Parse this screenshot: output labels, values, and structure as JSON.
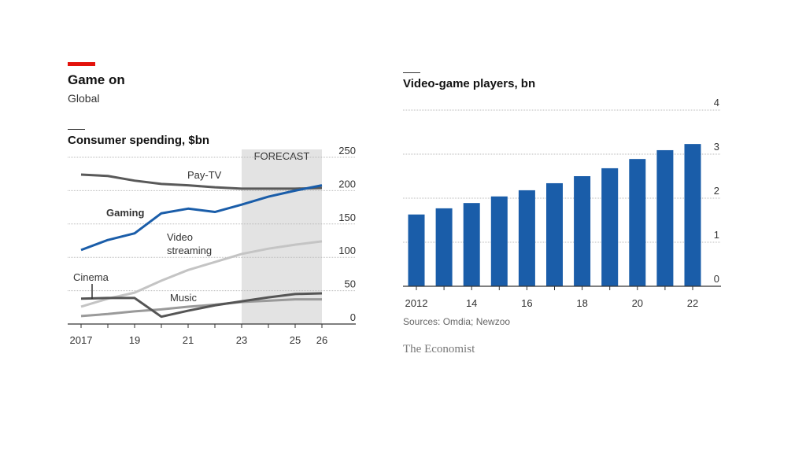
{
  "header": {
    "title": "Game on",
    "subtitle": "Global"
  },
  "source": "Sources: Omdia; Newzoo",
  "brand": "The Economist",
  "colors": {
    "red": "#e3120b",
    "blue": "#1a5da9",
    "paytv": "#595959",
    "cinema": "#555555",
    "music": "#9a9a9a",
    "streaming": "#c4c4c4",
    "forecast": "#e3e3e3"
  },
  "chart_data": [
    {
      "type": "line",
      "title": "Consumer spending, $bn",
      "forecast_label": "FORECAST",
      "forecast_range": [
        2023,
        2026
      ],
      "x": [
        2017,
        2018,
        2019,
        2020,
        2021,
        2022,
        2023,
        2024,
        2025,
        2026
      ],
      "x_tick_labels": [
        {
          "v": 2017,
          "t": "2017"
        },
        {
          "v": 2019,
          "t": "19"
        },
        {
          "v": 2021,
          "t": "21"
        },
        {
          "v": 2023,
          "t": "23"
        },
        {
          "v": 2025,
          "t": "25"
        },
        {
          "v": 2026,
          "t": "26"
        }
      ],
      "ylim": [
        0,
        250
      ],
      "y_ticks": [
        0,
        50,
        100,
        150,
        200,
        250
      ],
      "series": [
        {
          "name": "Pay-TV",
          "label": "Pay-TV",
          "values": [
            224,
            222,
            215,
            210,
            208,
            205,
            203,
            203,
            203,
            204
          ]
        },
        {
          "name": "Video streaming",
          "label": [
            "Video",
            "streaming"
          ],
          "values": [
            26,
            38,
            47,
            65,
            81,
            93,
            105,
            113,
            119,
            124
          ]
        },
        {
          "name": "Music",
          "label": "Music",
          "values": [
            12,
            15,
            19,
            22,
            26,
            29,
            33,
            35,
            37,
            37
          ]
        },
        {
          "name": "Cinema",
          "label": "Cinema",
          "values": [
            38,
            39,
            39,
            11,
            20,
            28,
            34,
            40,
            45,
            46
          ]
        },
        {
          "name": "Gaming",
          "label": "Gaming",
          "values": [
            111,
            126,
            136,
            166,
            173,
            168,
            179,
            191,
            200,
            208
          ]
        }
      ]
    },
    {
      "type": "bar",
      "title": "Video-game players, bn",
      "categories": [
        2012,
        2013,
        2014,
        2015,
        2016,
        2017,
        2018,
        2019,
        2020,
        2021,
        2022
      ],
      "x_tick_labels": [
        {
          "v": 2012,
          "t": "2012"
        },
        {
          "v": 2014,
          "t": "14"
        },
        {
          "v": 2016,
          "t": "16"
        },
        {
          "v": 2018,
          "t": "18"
        },
        {
          "v": 2020,
          "t": "20"
        },
        {
          "v": 2022,
          "t": "22"
        }
      ],
      "values": [
        1.63,
        1.77,
        1.89,
        2.04,
        2.18,
        2.34,
        2.5,
        2.68,
        2.89,
        3.09,
        3.23
      ],
      "ylim": [
        0,
        4
      ],
      "y_ticks": [
        0,
        1,
        2,
        3,
        4
      ]
    }
  ]
}
